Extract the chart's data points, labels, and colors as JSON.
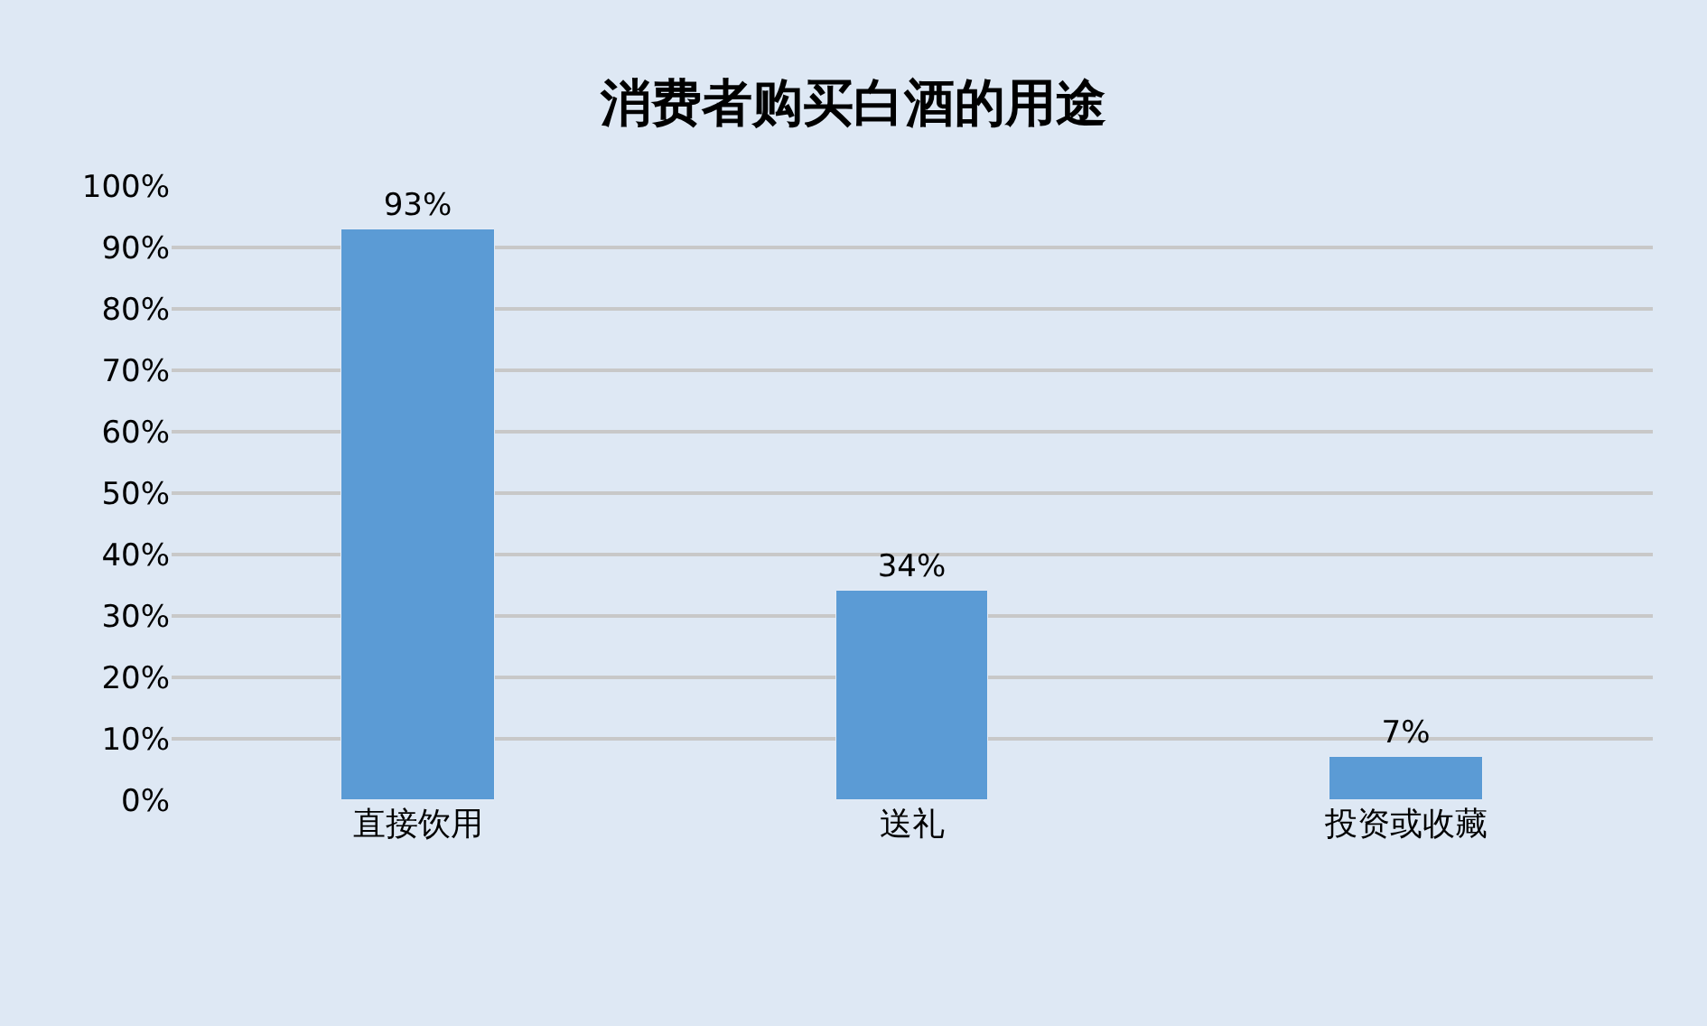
{
  "chart_data": {
    "type": "bar",
    "title": "消费者购买白酒的用途",
    "categories": [
      "直接饮用",
      "送礼",
      "投资或收藏"
    ],
    "values": [
      93,
      34,
      7
    ],
    "value_labels": [
      "93%",
      "34%",
      "7%"
    ],
    "color": "#5b9bd5",
    "ylim": [
      0,
      100
    ],
    "yticks": [
      {
        "value": 0,
        "label": "0%"
      },
      {
        "value": 10,
        "label": "10%"
      },
      {
        "value": 20,
        "label": "20%"
      },
      {
        "value": 30,
        "label": "30%"
      },
      {
        "value": 40,
        "label": "40%"
      },
      {
        "value": 50,
        "label": "50%"
      },
      {
        "value": 60,
        "label": "60%"
      },
      {
        "value": 70,
        "label": "70%"
      },
      {
        "value": 80,
        "label": "80%"
      },
      {
        "value": 90,
        "label": "90%"
      },
      {
        "value": 100,
        "label": "100%"
      }
    ],
    "grid": "y"
  }
}
